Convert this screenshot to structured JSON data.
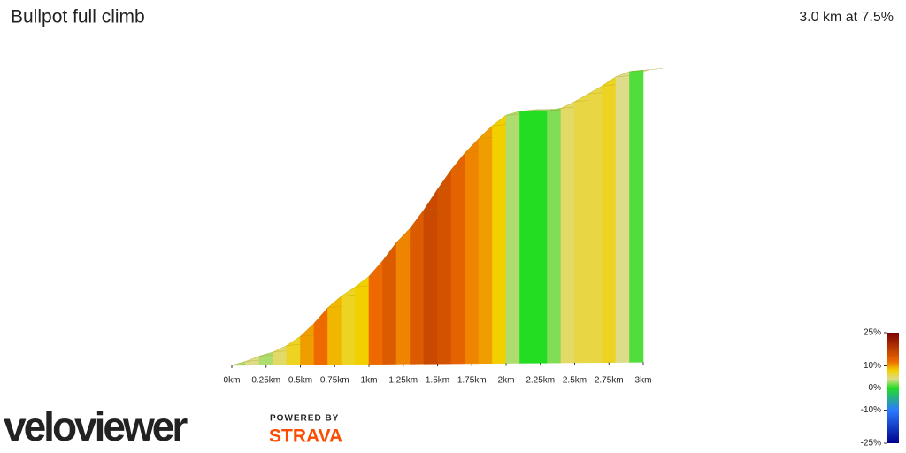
{
  "chart_data": {
    "type": "profile",
    "title": "Bullpot full climb",
    "subtitle": "3.0 km at 7.5%",
    "bins": [
      0,
      0.1,
      0.2,
      0.3,
      0.4,
      0.5,
      0.6,
      0.7,
      0.8,
      0.9,
      1.0,
      1.1,
      1.2,
      1.3,
      1.4,
      1.5,
      1.6,
      1.7,
      1.8,
      1.9,
      2.0,
      2.1,
      2.2,
      2.3,
      2.4,
      2.5,
      2.6,
      2.7,
      2.8,
      2.9,
      3.0
    ],
    "gradient": [
      3,
      4,
      3,
      5,
      7,
      10,
      12,
      9,
      7,
      8,
      12,
      14,
      11,
      14,
      16,
      15,
      13,
      11,
      10,
      8,
      3,
      0,
      0,
      2,
      5,
      6,
      6,
      7,
      4,
      1
    ],
    "xlim": [
      0,
      3
    ],
    "xticks": [
      {
        "value": 0,
        "label": "0km"
      },
      {
        "value": 0.25,
        "label": "0.25km"
      },
      {
        "value": 0.5,
        "label": "0.5km"
      },
      {
        "value": 0.75,
        "label": "0.75km"
      },
      {
        "value": 1,
        "label": "1km"
      },
      {
        "value": 1.25,
        "label": "1.25km"
      },
      {
        "value": 1.5,
        "label": "1.5km"
      },
      {
        "value": 1.75,
        "label": "1.75km"
      },
      {
        "value": 2,
        "label": "2km"
      },
      {
        "value": 2.25,
        "label": "2.25km"
      },
      {
        "value": 2.5,
        "label": "2.5km"
      },
      {
        "value": 2.75,
        "label": "2.75km"
      },
      {
        "value": 3,
        "label": "3km"
      }
    ],
    "color_ylim": [
      -25,
      25
    ],
    "color_ticks": [
      {
        "value": 25,
        "label": "25%"
      },
      {
        "value": 10,
        "label": "10%"
      },
      {
        "value": 0,
        "label": "0%"
      },
      {
        "value": -10,
        "label": "-10%"
      },
      {
        "value": -25,
        "label": "-25%"
      }
    ],
    "color_stops": [
      {
        "value": -25,
        "color": "#00008b"
      },
      {
        "value": -10,
        "color": "#2a7bff"
      },
      {
        "value": 0,
        "color": "#22dd22"
      },
      {
        "value": 4,
        "color": "#dedc88"
      },
      {
        "value": 8,
        "color": "#f2d000"
      },
      {
        "value": 12,
        "color": "#ee6a00"
      },
      {
        "value": 25,
        "color": "#7a0000"
      }
    ]
  },
  "footer": {
    "logo": "veloviewer",
    "powered_by": "POWERED BY",
    "strava": "STRAVA"
  }
}
